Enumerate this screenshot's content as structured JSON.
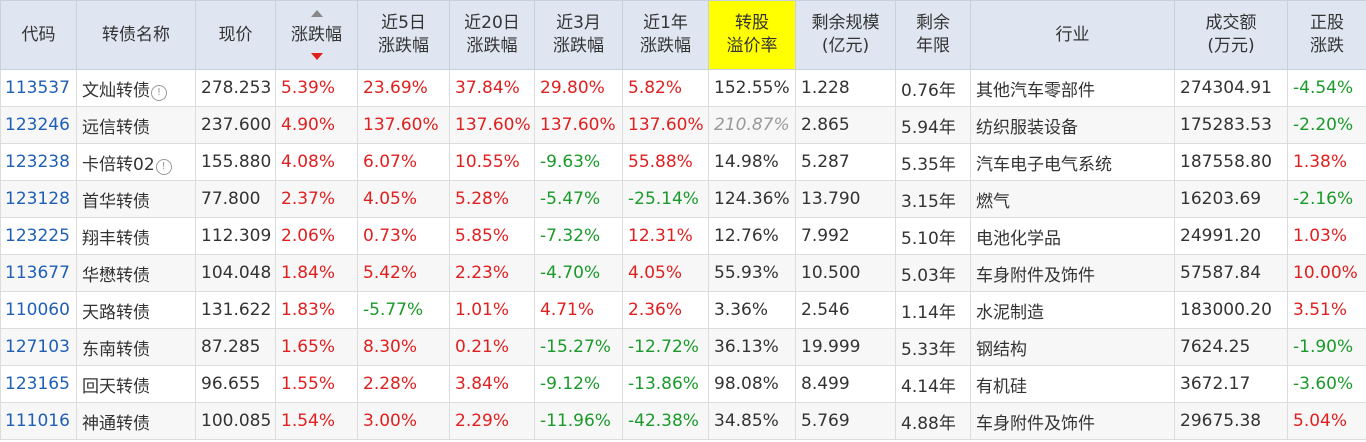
{
  "headers": [
    "代码",
    "转债名称",
    "现价",
    "涨跌幅",
    "近5日\n涨跌幅",
    "近20日\n涨跌幅",
    "近3月\n涨跌幅",
    "近1年\n涨跌幅",
    "转股\n溢价率",
    "剩余规模\n(亿元)",
    "剩余\n年限",
    "行业",
    "成交额\n(万元)",
    "正股\n涨跌"
  ],
  "highlight_header_index": 8,
  "sorted_column_index": 3,
  "sort_direction": "descending",
  "colors": {
    "up": "#e01f1f",
    "down": "#1a9a2a",
    "code": "#1f5fb5",
    "highlight": "#ffff00"
  },
  "rows": [
    {
      "code": "113537",
      "name": "文灿转债",
      "info": true,
      "price": "278.253",
      "chg": "5.39%",
      "d5": "23.69%",
      "d20": "37.84%",
      "m3": "29.80%",
      "y1": "5.82%",
      "premium": "152.55%",
      "scale": "1.228",
      "years": "0.76年",
      "industry": "其他汽车零部件",
      "volume": "274304.91",
      "stock": "-4.54%"
    },
    {
      "code": "123246",
      "name": "远信转债",
      "info": false,
      "price": "237.600",
      "chg": "4.90%",
      "d5": "137.60%",
      "d20": "137.60%",
      "m3": "137.60%",
      "y1": "137.60%",
      "premium": "210.87%",
      "premium_muted": true,
      "scale": "2.865",
      "years": "5.94年",
      "industry": "纺织服装设备",
      "volume": "175283.53",
      "stock": "-2.20%"
    },
    {
      "code": "123238",
      "name": "卡倍转02",
      "info": true,
      "price": "155.880",
      "chg": "4.08%",
      "d5": "6.07%",
      "d20": "10.55%",
      "m3": "-9.63%",
      "y1": "55.88%",
      "premium": "14.98%",
      "scale": "5.287",
      "years": "5.35年",
      "industry": "汽车电子电气系统",
      "volume": "187558.80",
      "stock": "1.38%"
    },
    {
      "code": "123128",
      "name": "首华转债",
      "info": false,
      "price": "77.800",
      "chg": "2.37%",
      "d5": "4.05%",
      "d20": "5.28%",
      "m3": "-5.47%",
      "y1": "-25.14%",
      "premium": "124.36%",
      "scale": "13.790",
      "years": "3.15年",
      "industry": "燃气",
      "volume": "16203.69",
      "stock": "-2.16%"
    },
    {
      "code": "123225",
      "name": "翔丰转债",
      "info": false,
      "price": "112.309",
      "chg": "2.06%",
      "d5": "0.73%",
      "d20": "5.85%",
      "m3": "-7.32%",
      "y1": "12.31%",
      "premium": "12.76%",
      "scale": "7.992",
      "years": "5.10年",
      "industry": "电池化学品",
      "volume": "24991.20",
      "stock": "1.03%"
    },
    {
      "code": "113677",
      "name": "华懋转债",
      "info": false,
      "price": "104.048",
      "chg": "1.84%",
      "d5": "5.42%",
      "d20": "2.23%",
      "m3": "-4.70%",
      "y1": "4.05%",
      "premium": "55.93%",
      "scale": "10.500",
      "years": "5.03年",
      "industry": "车身附件及饰件",
      "volume": "57587.84",
      "stock": "10.00%"
    },
    {
      "code": "110060",
      "name": "天路转债",
      "info": false,
      "price": "131.622",
      "chg": "1.83%",
      "d5": "-5.77%",
      "d20": "1.01%",
      "m3": "4.71%",
      "y1": "2.36%",
      "premium": "3.36%",
      "scale": "2.546",
      "years": "1.14年",
      "industry": "水泥制造",
      "volume": "183000.20",
      "stock": "3.51%"
    },
    {
      "code": "127103",
      "name": "东南转债",
      "info": false,
      "price": "87.285",
      "chg": "1.65%",
      "d5": "8.30%",
      "d20": "0.21%",
      "m3": "-15.27%",
      "y1": "-12.72%",
      "premium": "36.13%",
      "scale": "19.999",
      "years": "5.33年",
      "industry": "钢结构",
      "volume": "7624.25",
      "stock": "-1.90%"
    },
    {
      "code": "123165",
      "name": "回天转债",
      "info": false,
      "price": "96.655",
      "chg": "1.55%",
      "d5": "2.28%",
      "d20": "3.84%",
      "m3": "-9.12%",
      "y1": "-13.86%",
      "premium": "98.08%",
      "scale": "8.499",
      "years": "4.14年",
      "industry": "有机硅",
      "volume": "3672.17",
      "stock": "-3.60%"
    },
    {
      "code": "111016",
      "name": "神通转债",
      "info": false,
      "price": "100.085",
      "chg": "1.54%",
      "d5": "3.00%",
      "d20": "2.29%",
      "m3": "-11.96%",
      "y1": "-42.38%",
      "premium": "34.85%",
      "scale": "5.769",
      "years": "4.88年",
      "industry": "车身附件及饰件",
      "volume": "29675.38",
      "stock": "5.04%"
    }
  ]
}
